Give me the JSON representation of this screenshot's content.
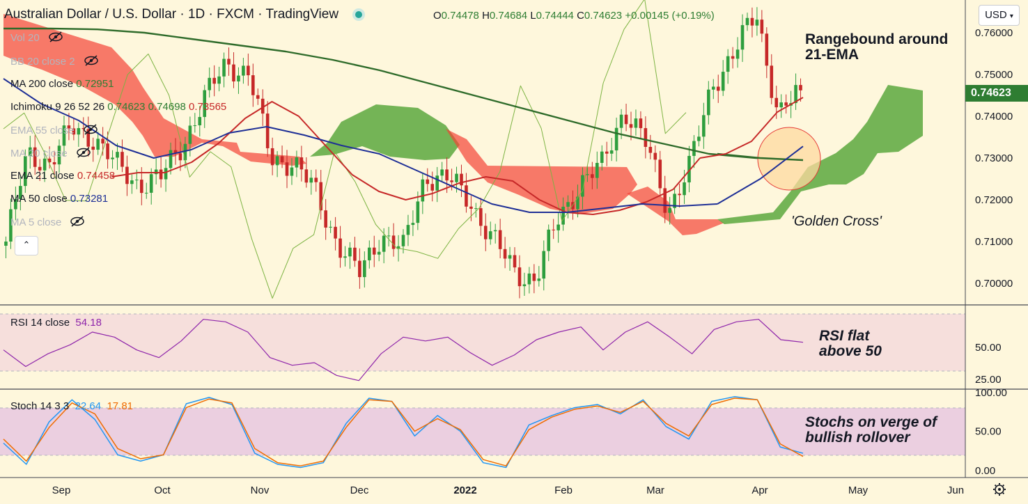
{
  "header": {
    "title": "Australian Dollar / U.S. Dollar · 1D · FXCM · TradingView",
    "ohlc": {
      "o_label": "O",
      "o": "0.74478",
      "h_label": "H",
      "h": "0.74684",
      "l_label": "L",
      "l": "0.74444",
      "c_label": "C",
      "c": "0.74623",
      "change": "+0.00145 (+0.19%)"
    },
    "currency": "USD",
    "currency_icon": "chevron-down-icon"
  },
  "indicators": [
    {
      "label": "Vol 20",
      "value": "",
      "hidden": true
    },
    {
      "label": "BB 20 close 2",
      "value": "",
      "hidden": true
    },
    {
      "label": "MA 200 close",
      "value": "0.72951",
      "hidden": false,
      "color": "#2e7d32"
    },
    {
      "label": "Ichimoku 9 26 52 26",
      "value": "0.74623",
      "value2": "0.74698",
      "value3": "0.73565",
      "hidden": false
    },
    {
      "label": "EMA 55 close",
      "value": "",
      "hidden": true
    },
    {
      "label": "MA 20 close",
      "value": "",
      "hidden": true
    },
    {
      "label": "EMA 21 close",
      "value": "0.74458",
      "hidden": false,
      "color": "#c62828"
    },
    {
      "label": "MA 50 close",
      "value": "0.73281",
      "hidden": false,
      "color": "#1e2f96"
    },
    {
      "label": "MA 5 close",
      "value": "",
      "hidden": true
    }
  ],
  "annotations": {
    "range": "Rangebound around\n21-EMA",
    "golden": "'Golden Cross'",
    "rsi": "RSI flat\nabove 50",
    "stoch": "Stochs on verge of\nbullish rollover"
  },
  "rsi_header": {
    "label": "RSI 14 close",
    "value": "54.18"
  },
  "stoch_header": {
    "label": "Stoch 14 3 3",
    "k": "22.64",
    "d": "17.81"
  },
  "price_tag": "0.74623",
  "colors": {
    "up": "#2e9e3e",
    "down": "#c62828",
    "ma200": "#2e6b2a",
    "ema21": "#c62828",
    "ma50": "#1e2f96",
    "rsi": "#8e24aa",
    "stoch_k": "#2196f3",
    "stoch_d": "#ef6c00",
    "cloud_bull": "#5ca83e",
    "cloud_bear": "#f44336"
  },
  "chart_data": [
    {
      "type": "candlestick",
      "title": "Australian Dollar / U.S. Dollar",
      "x_ticks": [
        "Sep",
        "Oct",
        "Nov",
        "Dec",
        "2022",
        "Feb",
        "Mar",
        "Apr",
        "May",
        "Jun"
      ],
      "y_ticks": [
        "0.76000",
        "0.75000",
        "0.74000",
        "0.73000",
        "0.72000",
        "0.71000",
        "0.70000"
      ],
      "ylim": [
        0.6965,
        0.7645
      ],
      "close_anchor": [
        0.71,
        0.731,
        0.729,
        0.737,
        0.735,
        0.728,
        0.724,
        0.725,
        0.7335,
        0.744,
        0.753,
        0.75,
        0.73,
        0.729,
        0.722,
        0.71,
        0.702,
        0.712,
        0.708,
        0.726,
        0.725,
        0.72,
        0.711,
        0.703,
        0.701,
        0.715,
        0.724,
        0.728,
        0.742,
        0.733,
        0.718,
        0.728,
        0.748,
        0.755,
        0.765,
        0.74,
        0.7462
      ],
      "series": [
        {
          "name": "MA 200 close",
          "values": [
            0.761,
            0.761,
            0.7608,
            0.76,
            0.7585,
            0.757,
            0.7555,
            0.7535,
            0.751,
            0.748,
            0.745,
            0.742,
            0.739,
            0.736,
            0.7335,
            0.731,
            0.73,
            0.7295
          ]
        },
        {
          "name": "EMA 21 close",
          "values": [
            0.7255,
            0.7265,
            0.7265,
            0.729,
            0.7335,
            0.7395,
            0.7435,
            0.74,
            0.733,
            0.726,
            0.722,
            0.72,
            0.7215,
            0.724,
            0.7255,
            0.7245,
            0.72,
            0.717,
            0.7165,
            0.7175,
            0.7195,
            0.7225,
            0.73,
            0.731,
            0.734,
            0.741,
            0.7445
          ]
        },
        {
          "name": "MA 50 close",
          "values": [
            0.749,
            0.743,
            0.739,
            0.733,
            0.73,
            0.732,
            0.736,
            0.7375,
            0.7355,
            0.733,
            0.731,
            0.727,
            0.723,
            0.719,
            0.717,
            0.717,
            0.718,
            0.719,
            0.7185,
            0.719,
            0.725,
            0.7328
          ]
        }
      ]
    },
    {
      "type": "line",
      "title": "RSI 14 close",
      "y_ticks": [
        "50.00",
        "25.00"
      ],
      "ylim": [
        20,
        80
      ],
      "series": [
        {
          "name": "RSI 14 close",
          "values": [
            48,
            35,
            45,
            52,
            62,
            58,
            48,
            42,
            55,
            72,
            70,
            62,
            42,
            36,
            38,
            28,
            24,
            45,
            58,
            55,
            58,
            46,
            36,
            44,
            56,
            62,
            66,
            48,
            62,
            70,
            58,
            45,
            64,
            70,
            72,
            56,
            54
          ]
        }
      ]
    },
    {
      "type": "line",
      "title": "Stoch 14 3 3",
      "y_ticks": [
        "100.00",
        "50.00",
        "0.00"
      ],
      "ylim": [
        0,
        100
      ],
      "series": [
        {
          "name": "%K",
          "values": [
            35,
            8,
            62,
            90,
            65,
            20,
            12,
            20,
            85,
            93,
            84,
            22,
            8,
            4,
            10,
            60,
            92,
            88,
            44,
            70,
            50,
            10,
            4,
            58,
            70,
            80,
            84,
            72,
            90,
            56,
            40,
            88,
            94,
            90,
            30,
            22
          ]
        },
        {
          "name": "%D",
          "values": [
            40,
            12,
            55,
            86,
            72,
            28,
            15,
            20,
            80,
            91,
            86,
            28,
            10,
            6,
            12,
            55,
            90,
            88,
            50,
            66,
            52,
            14,
            6,
            52,
            68,
            78,
            82,
            74,
            88,
            60,
            44,
            84,
            92,
            90,
            34,
            18
          ]
        }
      ]
    }
  ]
}
